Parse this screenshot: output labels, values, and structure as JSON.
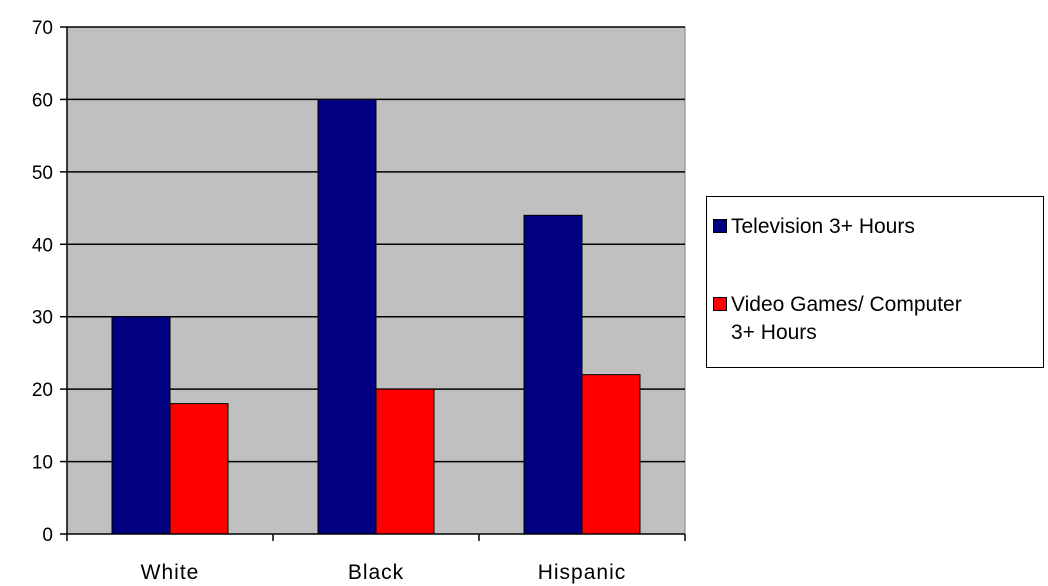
{
  "chart_data": {
    "type": "bar",
    "categories": [
      "White",
      "Black",
      "Hispanic"
    ],
    "series": [
      {
        "name": "Television 3+ Hours",
        "values": [
          30,
          60,
          44
        ],
        "color": "#000080"
      },
      {
        "name": "Video Games/ Computer 3+ Hours",
        "name_lines": [
          "Video Games/ Computer",
          "3+ Hours"
        ],
        "values": [
          18,
          20,
          22
        ],
        "color": "#ff0000"
      }
    ],
    "ylim": [
      0,
      70
    ],
    "yticks": [
      "0",
      "10",
      "20",
      "30",
      "40",
      "50",
      "60",
      "70"
    ],
    "grid": true,
    "plot_background": "#c0c0c0",
    "legend_position": "right"
  }
}
